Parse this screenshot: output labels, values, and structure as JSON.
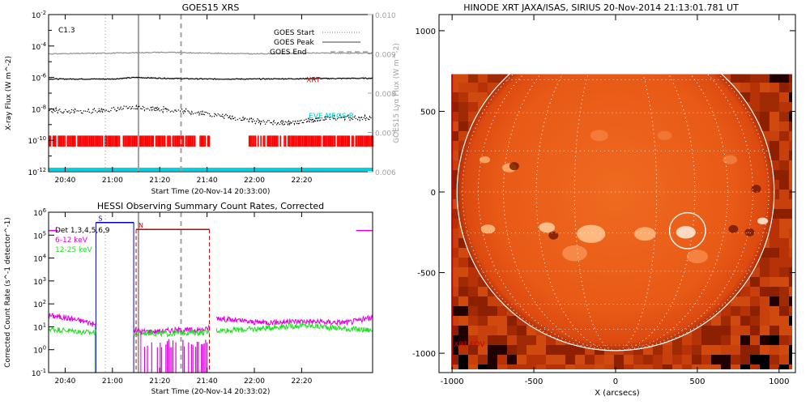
{
  "chart_data": [
    {
      "id": "goes",
      "type": "line",
      "title": "GOES15 XRS",
      "xlabel": "Start Time (20-Nov-14 20:33:00)",
      "ylabel": "X-ray Flux (W m^-2)",
      "y2label": "GOES15 Lyα Flux (W m^-2)",
      "xlim_min": [
        33,
        170
      ],
      "x_ticks": [
        {
          "min": 40,
          "label": "20:40"
        },
        {
          "min": 60,
          "label": "21:00"
        },
        {
          "min": 80,
          "label": "21:20"
        },
        {
          "min": 100,
          "label": "21:40"
        },
        {
          "min": 120,
          "label": "22:00"
        },
        {
          "min": 140,
          "label": "22:20"
        }
      ],
      "y_scale": "log",
      "ylim_exp": [
        -12,
        -2
      ],
      "y_tick_labels": [
        "10^-2",
        "10^-4",
        "10^-6",
        "10^-8",
        "10^-10",
        "10^-12"
      ],
      "y2lim": [
        0.006,
        0.01
      ],
      "y2_tick_labels": [
        "0.010",
        "0.009",
        "0.008",
        "0.007",
        "0.006"
      ],
      "flare_class": "C1.3",
      "legend": [
        {
          "label": "GOES Start",
          "style": "dotted",
          "color": "#a0a0a0"
        },
        {
          "label": "GOES Peak",
          "style": "solid",
          "color": "#a0a0a0"
        },
        {
          "label": "GOES End",
          "style": "dashed",
          "color": "#a0a0a0"
        }
      ],
      "markers_min": {
        "start": 57,
        "peak": 71,
        "end": 89
      },
      "series": [
        {
          "name": "",
          "color": "#909090",
          "log_value": -4.45,
          "x": [
            33,
            60,
            80,
            100,
            120,
            140,
            170
          ],
          "y": [
            -4.5,
            -4.45,
            -4.4,
            -4.45,
            -4.5,
            -4.45,
            -4.45
          ]
        },
        {
          "name": "",
          "color": "#000000",
          "log_value": -6.1,
          "x": [
            33,
            60,
            70,
            80,
            100,
            120,
            170
          ],
          "y": [
            -6.1,
            -6.1,
            -6.0,
            -6.05,
            -6.1,
            -6.1,
            -6.05
          ]
        },
        {
          "name": "",
          "color": "#000000",
          "style": "dotted",
          "x": [
            33,
            45,
            55,
            65,
            72,
            80,
            90,
            100,
            110,
            120,
            130,
            140,
            150,
            160,
            170
          ],
          "y": [
            -8.1,
            -8.2,
            -8.1,
            -8.0,
            -7.9,
            -8.0,
            -8.15,
            -8.3,
            -8.55,
            -8.75,
            -8.9,
            -8.85,
            -8.6,
            -8.55,
            -8.6
          ]
        }
      ],
      "labels": [
        {
          "text": "XRT",
          "color": "#cc0000",
          "min": 142,
          "log": -6.3
        },
        {
          "text": "EVE MEGS-B",
          "color": "#00d0d0",
          "min": 143,
          "log": -8.6
        }
      ],
      "xrt_bars": {
        "color": "#ff0000",
        "ranges_min": [
          [
            33,
            101
          ],
          [
            117,
            170
          ]
        ]
      },
      "eve_line": {
        "color": "#00d0e0",
        "log_value": -11.9
      }
    },
    {
      "id": "hessi",
      "type": "line",
      "title": "HESSI Observing Summary Count Rates, Corrected",
      "xlabel": "Start Time (20-Nov-14 20:33:02)",
      "ylabel": "Corrected Count Rate (s^-1 detector^-1)",
      "xlim_min": [
        33,
        170
      ],
      "x_ticks": [
        {
          "min": 40,
          "label": "20:40"
        },
        {
          "min": 60,
          "label": "21:00"
        },
        {
          "min": 80,
          "label": "21:20"
        },
        {
          "min": 100,
          "label": "21:40"
        },
        {
          "min": 120,
          "label": "22:00"
        },
        {
          "min": 140,
          "label": "22:20"
        }
      ],
      "y_scale": "log",
      "ylim_exp": [
        -1,
        6
      ],
      "y_tick_labels": [
        "10^6",
        "10^5",
        "10^4",
        "10^3",
        "10^2",
        "10^1",
        "10^0",
        "10^-1"
      ],
      "legend": [
        {
          "label": "Det 1,3,4,5,6,9",
          "color": "#000000"
        },
        {
          "label": "6-12 keV",
          "color": "#e000e0"
        },
        {
          "label": "12-25 keV",
          "color": "#20e020"
        }
      ],
      "states": [
        {
          "label": "S",
          "color": "#0000c0",
          "from_min": 53,
          "to_min": 69,
          "log": 5.55
        },
        {
          "label": "N",
          "color": "#cc0000",
          "from_min": 70,
          "to_min": 101,
          "log": 5.25
        }
      ],
      "markers_min": {
        "start": 57,
        "peak": 71,
        "end": 89
      },
      "gaps_min": [
        [
          53,
          69
        ],
        [
          101,
          104
        ]
      ],
      "series": [
        {
          "name": "6-12 keV",
          "color": "#e000e0",
          "x": [
            33,
            40,
            45,
            50,
            52,
            72,
            75,
            80,
            85,
            90,
            95,
            100,
            104,
            110,
            120,
            130,
            140,
            150,
            160,
            170
          ],
          "y": [
            1.5,
            1.4,
            1.3,
            1.2,
            1.1,
            0.8,
            0.8,
            0.8,
            0.85,
            0.85,
            0.85,
            0.9,
            1.4,
            1.3,
            1.2,
            1.2,
            1.25,
            1.2,
            1.2,
            1.4
          ]
        },
        {
          "name": "12-25 keV",
          "color": "#20e020",
          "x": [
            33,
            40,
            45,
            50,
            52,
            72,
            75,
            80,
            85,
            90,
            95,
            100,
            104,
            110,
            120,
            130,
            140,
            150,
            160,
            170
          ],
          "y": [
            0.9,
            0.85,
            0.8,
            0.75,
            0.75,
            0.7,
            0.75,
            0.7,
            0.7,
            0.75,
            0.75,
            0.75,
            0.85,
            0.85,
            0.9,
            1.0,
            1.05,
            1.0,
            0.9,
            0.85
          ]
        }
      ],
      "magenta_short": {
        "log": 5.2,
        "from_min": 33,
        "to_min": 37,
        "right_from_min": 163,
        "right_to_min": 170
      }
    },
    {
      "id": "xrt",
      "type": "heatmap",
      "title": "HINODE XRT JAXA/ISAS, SIRIUS 20-Nov-2014 21:13:01.781 UT",
      "xlabel": "X (arcsecs)",
      "xlim": [
        -1080,
        1100
      ],
      "ylim": [
        -1120,
        1100
      ],
      "x_ticks": [
        -1000,
        -500,
        0,
        500,
        1000
      ],
      "y_ticks": [
        -1000,
        -500,
        0,
        500,
        1000
      ],
      "x_tick_labels": [
        "-1000",
        "-500",
        "0",
        "500",
        "1000"
      ],
      "y_tick_labels": [
        "-1000",
        "-500",
        "0",
        "500",
        "1000"
      ],
      "fov_label": "XRT FOV",
      "fov_label_color": "#cc0000",
      "fov_x": [
        -1000,
        1080
      ],
      "fov_y": [
        -1100,
        730
      ],
      "sun_radius": 970,
      "flare_circle": {
        "x": 440,
        "y": -240,
        "r": 110
      }
    }
  ]
}
